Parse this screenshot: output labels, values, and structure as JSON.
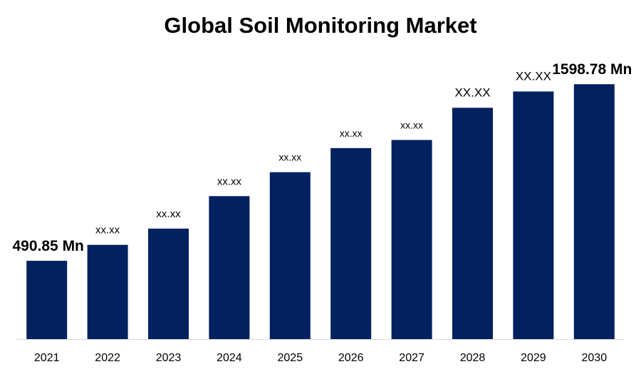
{
  "colors": {
    "bar": "#03215e",
    "axis": "#d9d9d9",
    "text": "#000000"
  },
  "chart_data": {
    "type": "bar",
    "title": "Global Soil Monitoring Market",
    "xlabel": "",
    "ylabel": "",
    "ylim": [
      0,
      1700
    ],
    "grid": false,
    "categories": [
      "2021",
      "2022",
      "2023",
      "2024",
      "2025",
      "2026",
      "2027",
      "2028",
      "2029",
      "2030"
    ],
    "values": [
      490.85,
      591,
      693,
      897,
      1047,
      1198,
      1249,
      1451,
      1553,
      1598.78
    ],
    "data_labels": [
      "490.85 Mn",
      "xx.xx",
      "xx.xx",
      "xx.xx",
      "xx.xx",
      "xx.xx",
      "xx.xx",
      "XX.XX",
      "XX.XX",
      "1598.78 Mn"
    ],
    "label_emphasis": [
      "strong",
      "normal",
      "normal",
      "normal",
      "small",
      "small",
      "small",
      "medium",
      "medium",
      "strong"
    ]
  }
}
